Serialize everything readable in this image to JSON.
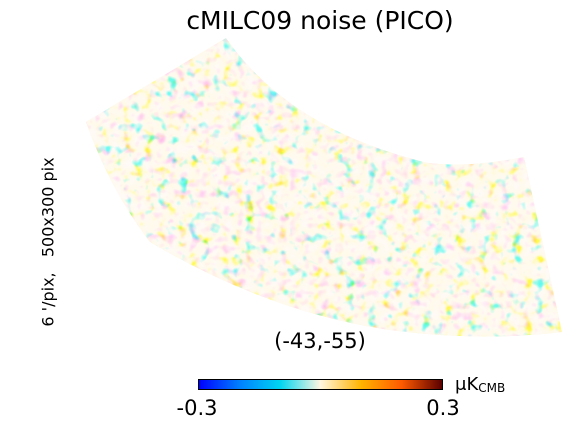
{
  "title": "cMILC09 noise (PICO)",
  "side_label": "6 '/pix,   500x300 pix",
  "center_coordinates": "(-43,-55)",
  "colorbar": {
    "min_label": "-0.3",
    "max_label": "0.3",
    "unit_prefix": "μK",
    "unit_subscript": "CMB",
    "colors": [
      "#0000ff",
      "#0080ff",
      "#00d4f0",
      "#fff6e0",
      "#ffb400",
      "#ff5a00",
      "#5a0000"
    ]
  },
  "map": {
    "description_colors": {
      "cold": "#00b4e6",
      "neutral": "#fff4dc",
      "warm": "#f59a00"
    }
  }
}
